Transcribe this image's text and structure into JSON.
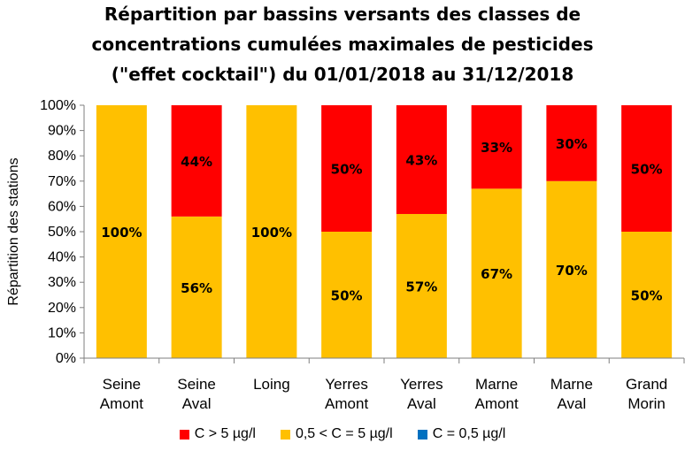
{
  "chart_data": {
    "type": "bar",
    "stacked": true,
    "title_lines": [
      "Répartition par bassins versants des classes de",
      "concentrations cumulées maximales de pesticides",
      "(\"effet cocktail\") du 01/01/2018 au 31/12/2018"
    ],
    "ylabel": "Répartition des stations",
    "xlabel": "",
    "ylim": [
      0,
      100
    ],
    "y_ticks": [
      "0%",
      "10%",
      "20%",
      "30%",
      "40%",
      "50%",
      "60%",
      "70%",
      "80%",
      "90%",
      "100%"
    ],
    "categories": [
      [
        "Seine",
        "Amont"
      ],
      [
        "Seine",
        "Aval"
      ],
      [
        "Loing"
      ],
      [
        "Yerres",
        "Amont"
      ],
      [
        "Yerres",
        "Aval"
      ],
      [
        "Marne",
        "Amont"
      ],
      [
        "Marne",
        "Aval"
      ],
      [
        "Grand",
        "Morin"
      ]
    ],
    "series": [
      {
        "name": "C = 0,5 µg/l",
        "color": "#0070C0",
        "values": [
          0,
          0,
          0,
          0,
          0,
          0,
          0,
          0
        ],
        "labels": [
          "",
          "",
          "",
          "",
          "",
          "",
          "",
          ""
        ]
      },
      {
        "name": "0,5 < C = 5 µg/l",
        "color": "#FFC000",
        "values": [
          100,
          56,
          100,
          50,
          57,
          67,
          70,
          50
        ],
        "labels": [
          "100%",
          "56%",
          "100%",
          "50%",
          "57%",
          "67%",
          "70%",
          "50%"
        ]
      },
      {
        "name": "C > 5 µg/l",
        "color": "#FF0000",
        "values": [
          0,
          44,
          0,
          50,
          43,
          33,
          30,
          50
        ],
        "labels": [
          "",
          "44%",
          "",
          "50%",
          "43%",
          "33%",
          "30%",
          "50%"
        ]
      }
    ],
    "legend_order": [
      2,
      1,
      0
    ],
    "legend_position": "bottom",
    "grid": false
  }
}
